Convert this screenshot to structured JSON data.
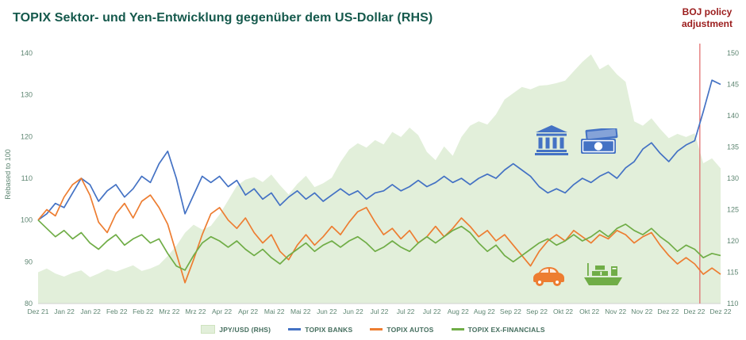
{
  "title": "TOPIX Sektor- und Yen-Entwicklung gegenüber dem US-Dollar (RHS)",
  "annotation": {
    "line1": "BOJ policy",
    "line2": "adjustment",
    "color": "#9b1c1c"
  },
  "colors": {
    "title": "#15594c",
    "axis_text": "#5e8672",
    "event_line": "#e06666",
    "banks": "#4472c4",
    "autos": "#ed7d31",
    "exfin": "#70ad47",
    "jpy_area": "#e2efda"
  },
  "chart_data": {
    "type": "line",
    "title": "TOPIX Sektor- und Yen-Entwicklung gegenüber dem US-Dollar (RHS)",
    "ylabel_left": "Rebased to 100",
    "left_axis": {
      "min": 80,
      "max": 140,
      "ticks": [
        80,
        90,
        100,
        110,
        120,
        130,
        140
      ]
    },
    "right_axis": {
      "min": 110,
      "max": 150,
      "ticks": [
        110,
        115,
        120,
        125,
        130,
        135,
        140,
        145,
        150
      ]
    },
    "x_tick_labels": [
      "Dez 21",
      "Jan 22",
      "Jan 22",
      "Feb 22",
      "Feb 22",
      "Mrz 22",
      "Mrz 22",
      "Apr 22",
      "Apr 22",
      "Mai 22",
      "Mai 22",
      "Jun 22",
      "Jun 22",
      "Jul 22",
      "Jul 22",
      "Jul 22",
      "Aug 22",
      "Aug 22",
      "Sep 22",
      "Sep 22",
      "Okt 22",
      "Okt 22",
      "Nov 22",
      "Nov 22",
      "Dez 22",
      "Dez 22",
      "Dez 22"
    ],
    "event_line": {
      "x_fraction": 0.9696,
      "color": "#e06666",
      "label": "BOJ policy adjustment"
    },
    "legend_position": "bottom",
    "grid": false,
    "series": [
      {
        "name": "JPY/USD (RHS)",
        "axis": "right",
        "type": "area",
        "color": "#e2efda",
        "values": [
          115.0,
          115.6,
          114.8,
          114.3,
          114.9,
          115.3,
          114.2,
          114.8,
          115.5,
          115.1,
          115.6,
          116.1,
          115.2,
          115.6,
          116.2,
          117.6,
          119.2,
          121.3,
          122.6,
          121.8,
          122.4,
          124.2,
          126.5,
          128.8,
          129.8,
          130.2,
          129.4,
          130.6,
          128.9,
          127.4,
          129.1,
          130.4,
          128.6,
          129.2,
          130.1,
          132.6,
          134.6,
          135.6,
          134.9,
          136.1,
          135.4,
          137.4,
          136.6,
          138.1,
          136.9,
          134.2,
          132.9,
          135.1,
          133.6,
          136.6,
          138.4,
          139.1,
          138.6,
          140.2,
          142.6,
          143.6,
          144.6,
          144.2,
          144.8,
          144.9,
          145.2,
          145.6,
          147.1,
          148.6,
          149.8,
          147.4,
          148.2,
          146.6,
          145.4,
          139.1,
          138.4,
          139.6,
          137.9,
          136.4,
          137.1,
          136.6,
          137.2,
          132.4,
          133.2,
          131.6
        ]
      },
      {
        "name": "TOPIX BANKS",
        "axis": "left",
        "type": "line",
        "color": "#4472c4",
        "values": [
          100.0,
          101.5,
          104.0,
          103.0,
          106.5,
          110.0,
          108.5,
          104.5,
          107.0,
          108.5,
          105.5,
          107.5,
          110.5,
          109.0,
          113.5,
          116.5,
          110.0,
          101.5,
          106.0,
          110.5,
          109.0,
          110.5,
          108.0,
          109.5,
          106.0,
          107.5,
          105.0,
          106.5,
          103.5,
          105.5,
          107.0,
          105.0,
          106.5,
          104.5,
          106.0,
          107.5,
          106.0,
          107.0,
          105.0,
          106.5,
          107.0,
          108.5,
          107.0,
          108.0,
          109.5,
          108.0,
          109.0,
          110.5,
          109.0,
          110.0,
          108.5,
          110.0,
          111.0,
          110.0,
          112.0,
          113.5,
          112.0,
          110.5,
          108.0,
          106.5,
          107.5,
          106.5,
          108.5,
          110.0,
          109.0,
          110.5,
          111.5,
          110.0,
          112.5,
          114.0,
          117.0,
          118.5,
          116.0,
          114.0,
          116.5,
          118.0,
          119.0,
          126.0,
          133.5,
          132.5
        ]
      },
      {
        "name": "TOPIX AUTOS",
        "axis": "left",
        "type": "line",
        "color": "#ed7d31",
        "values": [
          100.0,
          102.5,
          101.0,
          105.5,
          108.5,
          110.0,
          106.0,
          99.5,
          97.0,
          101.5,
          104.0,
          100.5,
          104.5,
          106.0,
          103.0,
          99.0,
          92.0,
          85.0,
          90.5,
          96.5,
          101.5,
          103.0,
          100.0,
          98.0,
          100.5,
          97.0,
          94.5,
          96.5,
          92.5,
          90.5,
          94.0,
          96.5,
          94.0,
          96.0,
          98.5,
          96.5,
          99.5,
          102.0,
          103.0,
          99.5,
          96.5,
          98.0,
          95.5,
          97.5,
          94.5,
          96.0,
          98.5,
          96.0,
          98.0,
          100.5,
          98.5,
          96.0,
          97.5,
          95.0,
          96.5,
          94.0,
          91.5,
          89.0,
          92.5,
          95.0,
          96.5,
          95.0,
          97.5,
          96.0,
          94.5,
          96.5,
          95.5,
          97.5,
          96.5,
          94.5,
          96.0,
          97.0,
          94.0,
          91.5,
          89.5,
          91.0,
          89.5,
          87.0,
          88.5,
          87.0
        ]
      },
      {
        "name": "TOPIX EX-FINANCIALS",
        "axis": "left",
        "type": "line",
        "color": "#70ad47",
        "values": [
          100.0,
          98.0,
          96.0,
          97.5,
          95.5,
          97.0,
          94.5,
          93.0,
          95.0,
          96.5,
          94.0,
          95.5,
          96.5,
          94.5,
          95.5,
          92.0,
          89.0,
          88.0,
          91.5,
          94.5,
          96.0,
          95.0,
          93.5,
          95.0,
          93.0,
          91.5,
          93.0,
          91.0,
          89.5,
          91.5,
          93.0,
          94.5,
          92.5,
          94.0,
          95.0,
          93.5,
          95.0,
          96.0,
          94.5,
          92.5,
          93.5,
          95.0,
          93.5,
          92.5,
          94.5,
          96.0,
          94.5,
          96.0,
          97.5,
          98.5,
          97.0,
          94.5,
          92.5,
          94.0,
          91.5,
          90.0,
          91.5,
          93.0,
          94.5,
          95.5,
          94.0,
          95.0,
          96.5,
          95.0,
          96.0,
          97.5,
          96.0,
          98.0,
          99.0,
          97.5,
          96.5,
          98.0,
          96.0,
          94.5,
          92.5,
          94.0,
          93.0,
          91.0,
          92.0,
          91.5
        ]
      }
    ]
  }
}
